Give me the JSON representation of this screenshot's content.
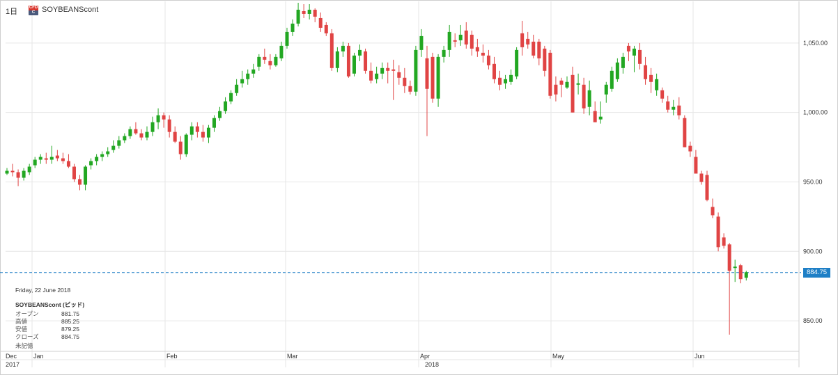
{
  "header": {
    "timeframe": "1日",
    "badge_top": "CFD",
    "badge_bottom": "C",
    "symbol": "SOYBEANScont"
  },
  "info_panel": {
    "date": "Friday, 22 June 2018",
    "title": "SOYBEANScont (ビッド)",
    "rows": [
      {
        "label": "オープン",
        "value": "881.75"
      },
      {
        "label": "高値",
        "value": "885.25"
      },
      {
        "label": "安値",
        "value": "879.25"
      },
      {
        "label": "クローズ",
        "value": "884.75"
      }
    ],
    "footer": "未記憶"
  },
  "chart_data": {
    "type": "candlestick",
    "title": "",
    "ylim": [
      828,
      1080
    ],
    "y_ticks": [
      "850.00",
      "900.00",
      "950.00",
      "1,000.00",
      "1,050.00"
    ],
    "y_tick_values": [
      850,
      900,
      950,
      1000,
      1050
    ],
    "x_month_labels": [
      "Dec",
      "Jan",
      "Feb",
      "Mar",
      "Apr",
      "May",
      "Jun"
    ],
    "x_year_labels": [
      "2017",
      "2018"
    ],
    "last_price": "884.75",
    "last_price_value": 884.75,
    "colors": {
      "up": "#22a722",
      "down": "#e04444",
      "grid": "#e6e6e6",
      "last": "#1e7fc6"
    },
    "grid": true,
    "ohlc": [
      [
        956,
        960,
        955,
        958
      ],
      [
        958,
        963,
        954,
        957
      ],
      [
        957,
        959,
        947,
        953
      ],
      [
        953,
        960,
        951,
        958
      ],
      [
        957,
        963,
        955,
        961
      ],
      [
        962,
        968,
        960,
        966
      ],
      [
        966,
        970,
        963,
        968
      ],
      [
        967,
        971,
        963,
        966
      ],
      [
        966,
        976,
        963,
        968
      ],
      [
        969,
        973,
        965,
        967
      ],
      [
        967,
        971,
        963,
        965
      ],
      [
        965,
        970,
        960,
        961
      ],
      [
        961,
        963,
        950,
        952
      ],
      [
        952,
        955,
        944,
        948
      ],
      [
        948,
        962,
        944,
        961
      ],
      [
        962,
        967,
        959,
        965
      ],
      [
        965,
        970,
        962,
        968
      ],
      [
        968,
        972,
        965,
        970
      ],
      [
        970,
        975,
        968,
        972
      ],
      [
        973,
        980,
        971,
        976
      ],
      [
        976,
        983,
        974,
        980
      ],
      [
        980,
        985,
        978,
        983
      ],
      [
        983,
        990,
        981,
        988
      ],
      [
        988,
        993,
        984,
        985
      ],
      [
        985,
        988,
        980,
        982
      ],
      [
        982,
        990,
        980,
        986
      ],
      [
        986,
        997,
        983,
        993
      ],
      [
        993,
        1003,
        988,
        998
      ],
      [
        998,
        1000,
        989,
        995
      ],
      [
        995,
        998,
        982,
        986
      ],
      [
        986,
        990,
        978,
        979
      ],
      [
        979,
        983,
        966,
        970
      ],
      [
        970,
        985,
        968,
        984
      ],
      [
        984,
        993,
        980,
        990
      ],
      [
        990,
        993,
        982,
        986
      ],
      [
        986,
        991,
        979,
        982
      ],
      [
        982,
        991,
        978,
        989
      ],
      [
        989,
        998,
        986,
        996
      ],
      [
        996,
        1004,
        994,
        1001
      ],
      [
        1001,
        1011,
        999,
        1008
      ],
      [
        1008,
        1016,
        1006,
        1014
      ],
      [
        1014,
        1024,
        1012,
        1020
      ],
      [
        1021,
        1030,
        1018,
        1024
      ],
      [
        1024,
        1031,
        1020,
        1028
      ],
      [
        1028,
        1035,
        1025,
        1031
      ],
      [
        1033,
        1042,
        1030,
        1040
      ],
      [
        1040,
        1046,
        1035,
        1038
      ],
      [
        1037,
        1042,
        1031,
        1034
      ],
      [
        1034,
        1042,
        1033,
        1040
      ],
      [
        1039,
        1051,
        1037,
        1048
      ],
      [
        1048,
        1061,
        1046,
        1058
      ],
      [
        1058,
        1067,
        1055,
        1064
      ],
      [
        1064,
        1079,
        1062,
        1074
      ],
      [
        1073,
        1078,
        1068,
        1071
      ],
      [
        1071,
        1078,
        1067,
        1074
      ],
      [
        1074,
        1075,
        1065,
        1069
      ],
      [
        1068,
        1072,
        1058,
        1061
      ],
      [
        1063,
        1065,
        1055,
        1057
      ],
      [
        1057,
        1060,
        1030,
        1032
      ],
      [
        1032,
        1047,
        1029,
        1044
      ],
      [
        1044,
        1051,
        1040,
        1048
      ],
      [
        1048,
        1050,
        1025,
        1026
      ],
      [
        1028,
        1043,
        1026,
        1041
      ],
      [
        1041,
        1049,
        1037,
        1045
      ],
      [
        1044,
        1046,
        1028,
        1030
      ],
      [
        1030,
        1036,
        1021,
        1023
      ],
      [
        1024,
        1033,
        1021,
        1028
      ],
      [
        1028,
        1036,
        1024,
        1032
      ],
      [
        1032,
        1036,
        1021,
        1030
      ],
      [
        1031,
        1038,
        1009,
        1030
      ],
      [
        1029,
        1034,
        1020,
        1025
      ],
      [
        1025,
        1032,
        1014,
        1019
      ],
      [
        1019,
        1023,
        1013,
        1015
      ],
      [
        1015,
        1048,
        1012,
        1045
      ],
      [
        1045,
        1060,
        1040,
        1055
      ],
      [
        1039,
        1048,
        983,
        1017
      ],
      [
        1040,
        1043,
        1007,
        1010
      ],
      [
        1010,
        1042,
        1004,
        1040
      ],
      [
        1040,
        1048,
        1036,
        1045
      ],
      [
        1045,
        1063,
        1040,
        1058
      ],
      [
        1052,
        1057,
        1047,
        1051
      ],
      [
        1052,
        1063,
        1048,
        1056
      ],
      [
        1059,
        1065,
        1046,
        1049
      ],
      [
        1056,
        1059,
        1041,
        1046
      ],
      [
        1047,
        1053,
        1040,
        1044
      ],
      [
        1043,
        1049,
        1036,
        1041
      ],
      [
        1041,
        1045,
        1031,
        1034
      ],
      [
        1035,
        1040,
        1021,
        1024
      ],
      [
        1025,
        1030,
        1016,
        1020
      ],
      [
        1021,
        1027,
        1017,
        1024
      ],
      [
        1022,
        1031,
        1020,
        1027
      ],
      [
        1026,
        1047,
        1024,
        1045
      ],
      [
        1057,
        1066,
        1041,
        1047
      ],
      [
        1053,
        1058,
        1046,
        1049
      ],
      [
        1051,
        1056,
        1039,
        1041
      ],
      [
        1051,
        1053,
        1034,
        1039
      ],
      [
        1046,
        1048,
        1026,
        1030
      ],
      [
        1043,
        1045,
        1010,
        1012
      ],
      [
        1020,
        1026,
        1008,
        1013
      ],
      [
        1023,
        1025,
        1011,
        1020
      ],
      [
        1018,
        1026,
        1017,
        1022
      ],
      [
        1027,
        1033,
        1000,
        1000
      ],
      [
        1020,
        1028,
        1013,
        1021
      ],
      [
        1020,
        1025,
        999,
        1003
      ],
      [
        1004,
        1023,
        998,
        1016
      ],
      [
        1001,
        1008,
        993,
        993
      ],
      [
        995,
        1008,
        992,
        997
      ],
      [
        1013,
        1022,
        1007,
        1020
      ],
      [
        1017,
        1033,
        1015,
        1030
      ],
      [
        1024,
        1039,
        1022,
        1036
      ],
      [
        1032,
        1043,
        1028,
        1040
      ],
      [
        1048,
        1050,
        1037,
        1044
      ],
      [
        1041,
        1048,
        1029,
        1046
      ],
      [
        1045,
        1050,
        1031,
        1035
      ],
      [
        1034,
        1040,
        1020,
        1024
      ],
      [
        1027,
        1032,
        1014,
        1022
      ],
      [
        1016,
        1028,
        1012,
        1024
      ],
      [
        1016,
        1018,
        1007,
        1010
      ],
      [
        1008,
        1012,
        1000,
        1002
      ],
      [
        1002,
        1009,
        998,
        1004
      ],
      [
        1005,
        1011,
        995,
        998
      ],
      [
        996,
        998,
        975,
        975
      ],
      [
        976,
        979,
        968,
        972
      ],
      [
        968,
        973,
        956,
        956
      ],
      [
        956,
        958,
        948,
        950
      ],
      [
        955,
        958,
        936,
        937
      ],
      [
        932,
        938,
        924,
        926
      ],
      [
        925,
        928,
        900,
        903
      ],
      [
        910,
        913,
        902,
        904
      ],
      [
        905,
        906,
        840,
        886
      ],
      [
        888,
        894,
        878,
        889
      ],
      [
        890,
        891,
        877,
        880
      ],
      [
        881,
        886,
        879,
        885
      ]
    ]
  }
}
